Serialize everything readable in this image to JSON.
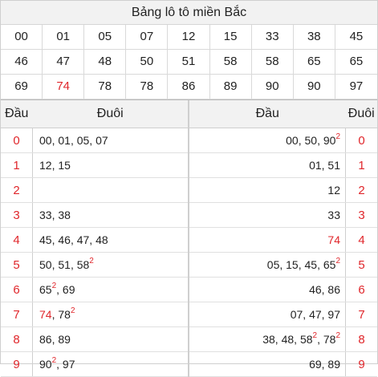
{
  "title": "Bảng lô tô miền Bắc",
  "numbers": [
    {
      "v": "00"
    },
    {
      "v": "01"
    },
    {
      "v": "05"
    },
    {
      "v": "07"
    },
    {
      "v": "12"
    },
    {
      "v": "15"
    },
    {
      "v": "33"
    },
    {
      "v": "38"
    },
    {
      "v": "45"
    },
    {
      "v": "46"
    },
    {
      "v": "47"
    },
    {
      "v": "48"
    },
    {
      "v": "50"
    },
    {
      "v": "51"
    },
    {
      "v": "58"
    },
    {
      "v": "58"
    },
    {
      "v": "65"
    },
    {
      "v": "65"
    },
    {
      "v": "69"
    },
    {
      "v": "74",
      "highlight": true
    },
    {
      "v": "78"
    },
    {
      "v": "78"
    },
    {
      "v": "86"
    },
    {
      "v": "89"
    },
    {
      "v": "90"
    },
    {
      "v": "90"
    },
    {
      "v": "97"
    }
  ],
  "left_table": {
    "head_label": "Đầu",
    "tail_label": "Đuôi",
    "rows": [
      {
        "head": "0",
        "items": [
          {
            "v": "00"
          },
          {
            "v": "01"
          },
          {
            "v": "05"
          },
          {
            "v": "07"
          }
        ]
      },
      {
        "head": "1",
        "items": [
          {
            "v": "12"
          },
          {
            "v": "15"
          }
        ]
      },
      {
        "head": "2",
        "items": []
      },
      {
        "head": "3",
        "items": [
          {
            "v": "33"
          },
          {
            "v": "38"
          }
        ]
      },
      {
        "head": "4",
        "items": [
          {
            "v": "45"
          },
          {
            "v": "46"
          },
          {
            "v": "47"
          },
          {
            "v": "48"
          }
        ]
      },
      {
        "head": "5",
        "items": [
          {
            "v": "50"
          },
          {
            "v": "51"
          },
          {
            "v": "58",
            "sup": "2"
          }
        ]
      },
      {
        "head": "6",
        "items": [
          {
            "v": "65",
            "sup": "2"
          },
          {
            "v": "69"
          }
        ]
      },
      {
        "head": "7",
        "items": [
          {
            "v": "74",
            "highlight": true
          },
          {
            "v": "78",
            "sup": "2"
          }
        ]
      },
      {
        "head": "8",
        "items": [
          {
            "v": "86"
          },
          {
            "v": "89"
          }
        ]
      },
      {
        "head": "9",
        "items": [
          {
            "v": "90",
            "sup": "2"
          },
          {
            "v": "97"
          }
        ]
      }
    ]
  },
  "right_table": {
    "head_label": "Đầu",
    "tail_label": "Đuôi",
    "rows": [
      {
        "tail": "0",
        "items": [
          {
            "v": "00"
          },
          {
            "v": "50"
          },
          {
            "v": "90",
            "sup": "2"
          }
        ]
      },
      {
        "tail": "1",
        "items": [
          {
            "v": "01"
          },
          {
            "v": "51"
          }
        ]
      },
      {
        "tail": "2",
        "items": [
          {
            "v": "12"
          }
        ]
      },
      {
        "tail": "3",
        "items": [
          {
            "v": "33"
          }
        ]
      },
      {
        "tail": "4",
        "items": [
          {
            "v": "74",
            "highlight": true
          }
        ]
      },
      {
        "tail": "5",
        "items": [
          {
            "v": "05"
          },
          {
            "v": "15"
          },
          {
            "v": "45"
          },
          {
            "v": "65",
            "sup": "2"
          }
        ]
      },
      {
        "tail": "6",
        "items": [
          {
            "v": "46"
          },
          {
            "v": "86"
          }
        ]
      },
      {
        "tail": "7",
        "items": [
          {
            "v": "07"
          },
          {
            "v": "47"
          },
          {
            "v": "97"
          }
        ]
      },
      {
        "tail": "8",
        "items": [
          {
            "v": "38"
          },
          {
            "v": "48"
          },
          {
            "v": "58",
            "sup": "2"
          },
          {
            "v": "78",
            "sup": "2"
          }
        ]
      },
      {
        "tail": "9",
        "items": [
          {
            "v": "69"
          },
          {
            "v": "89"
          }
        ]
      }
    ]
  },
  "colors": {
    "highlight": "#e0262b",
    "header_bg": "#f2f2f2"
  }
}
